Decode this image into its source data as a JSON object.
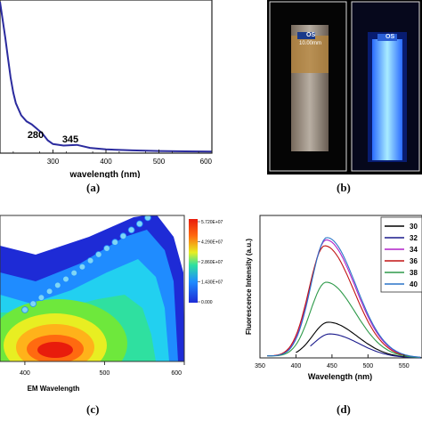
{
  "panels": {
    "a": {
      "caption": "(a)",
      "chart_data": {
        "type": "line",
        "title": "",
        "xlabel": "wavelength (nm)",
        "ylabel": "",
        "xlim": [
          200,
          600
        ],
        "xticks": [
          "300",
          "400",
          "500",
          "600"
        ],
        "annotations": [
          "280",
          "345"
        ],
        "series": [
          {
            "color": "#2b2b9e",
            "x": [
              200,
              205,
              210,
              215,
              220,
              225,
              230,
              240,
              250,
              260,
              270,
              280,
              290,
              300,
              320,
              345,
              370,
              400,
              450,
              500,
              550,
              600
            ],
            "y": [
              1.0,
              0.88,
              0.76,
              0.63,
              0.5,
              0.4,
              0.33,
              0.25,
              0.21,
              0.19,
              0.16,
              0.13,
              0.085,
              0.06,
              0.05,
              0.055,
              0.035,
              0.025,
              0.018,
              0.014,
              0.012,
              0.01
            ]
          }
        ]
      }
    },
    "b": {
      "caption": "(b)",
      "cuvette_labels": [
        "OS",
        "10.00mm"
      ]
    },
    "c": {
      "caption": "(c)",
      "chart_data": {
        "type": "heatmap",
        "xlabel": "EM Wavelength",
        "xticks": [
          "400",
          "500",
          "600"
        ],
        "colorbar": [
          "5.720E+07",
          "4.290E+07",
          "2.860E+07",
          "1.430E+07",
          "0.000"
        ],
        "colors": [
          "#1e2bd6",
          "#1f8cff",
          "#22d0f0",
          "#2fe0a0",
          "#6ee83c",
          "#e8ee22",
          "#ffb21a",
          "#ff6a10",
          "#e81c0c"
        ]
      }
    },
    "d": {
      "caption": "(d)",
      "chart_data": {
        "type": "line",
        "xlabel": "Wavelength (nm)",
        "ylabel": "Fluorescence Intensity (a.u.)",
        "xlim": [
          350,
          575
        ],
        "xticks": [
          "350",
          "400",
          "450",
          "500",
          "550"
        ],
        "legend_visible": [
          "30",
          "32",
          "34",
          "36",
          "38",
          "40"
        ],
        "series": [
          {
            "name": "30",
            "color": "#000000",
            "start": 400,
            "peak": 445,
            "amp": 0.3
          },
          {
            "name": "32",
            "color": "#1a1a8c",
            "start": 420,
            "peak": 447,
            "amp": 0.2
          },
          {
            "name": "34",
            "color": "#b020c8",
            "start": 360,
            "peak": 442,
            "amp": 1.0
          },
          {
            "name": "36",
            "color": "#c21414",
            "start": 360,
            "peak": 440,
            "amp": 0.95
          },
          {
            "name": "38",
            "color": "#2e9a4a",
            "start": 360,
            "peak": 442,
            "amp": 0.64
          },
          {
            "name": "40",
            "color": "#2a74c9",
            "start": 360,
            "peak": 443,
            "amp": 1.02
          }
        ]
      }
    }
  }
}
